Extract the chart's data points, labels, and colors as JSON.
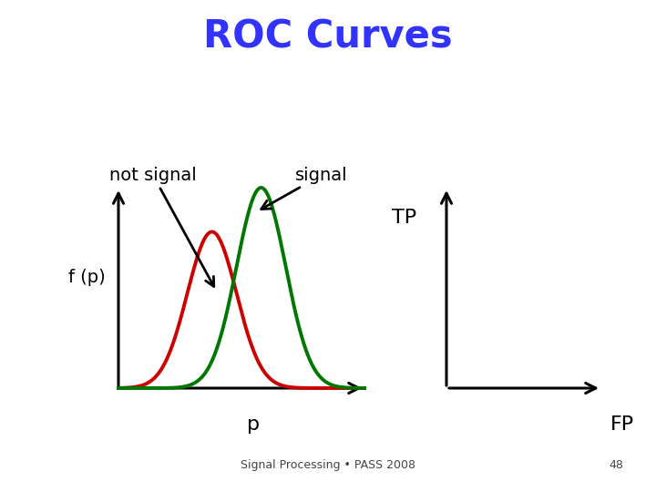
{
  "title": "ROC Curves",
  "title_color": "#3333FF",
  "title_bg_color": "#FAFAAA",
  "title_fontsize": 30,
  "title_fontstyle": "bold",
  "bg_color": "#FFFFFF",
  "not_signal_label": "not signal",
  "signal_label": "signal",
  "fp_label": "FP",
  "tp_label": "TP",
  "p_label": "p",
  "y_label": "f (p)",
  "footer_text": "Signal Processing • PASS 2008",
  "footer_page": "48",
  "red_mu": 0.38,
  "red_sigma": 0.1,
  "green_mu": 0.58,
  "green_sigma": 0.1,
  "red_color": "#CC0000",
  "green_color": "#007700",
  "lw": 2.8,
  "arrow_lw": 2.2,
  "label_fontsize": 14,
  "annot_fontsize": 14
}
